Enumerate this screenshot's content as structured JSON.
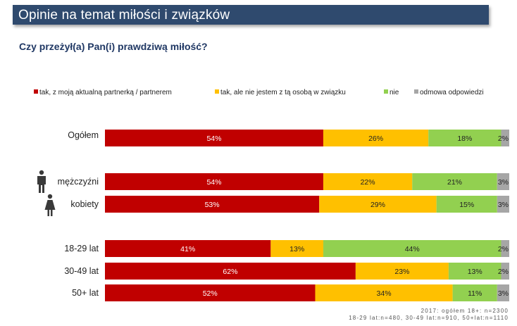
{
  "header": {
    "title": "Opinie na temat miłości i związków"
  },
  "question": "Czy przeżył(a) Pan(i) prawdziwą miłość?",
  "colors": {
    "header_bg": "#2f4a6e",
    "series": [
      "#c00000",
      "#ffc000",
      "#92d050",
      "#a6a6a6"
    ]
  },
  "icons": {
    "male": "man-icon",
    "female": "woman-icon"
  },
  "chart_data": {
    "type": "bar",
    "orientation": "horizontal",
    "stacked": true,
    "xlim": [
      0,
      100
    ],
    "unit": "%",
    "legend_position": "top",
    "categories": [
      "Ogółem",
      "mężczyźni",
      "kobiety",
      "18-29 lat",
      "30-49 lat",
      "50+ lat"
    ],
    "series": [
      {
        "name": "tak, z moją aktualną partnerką / partnerem",
        "values": [
          54,
          54,
          53,
          41,
          62,
          52
        ]
      },
      {
        "name": "tak, ale nie jestem z tą osobą w związku",
        "values": [
          26,
          22,
          29,
          13,
          23,
          34
        ]
      },
      {
        "name": "nie",
        "values": [
          18,
          21,
          15,
          44,
          13,
          11
        ]
      },
      {
        "name": "odmowa odpowiedzi",
        "values": [
          2,
          3,
          3,
          2,
          2,
          3
        ]
      }
    ]
  },
  "source": {
    "line1": "2017: ogółem 18+: n=2300",
    "line2": "18-29 lat:n=480, 30-49 lat:n=910, 50+lat:n=1110"
  }
}
